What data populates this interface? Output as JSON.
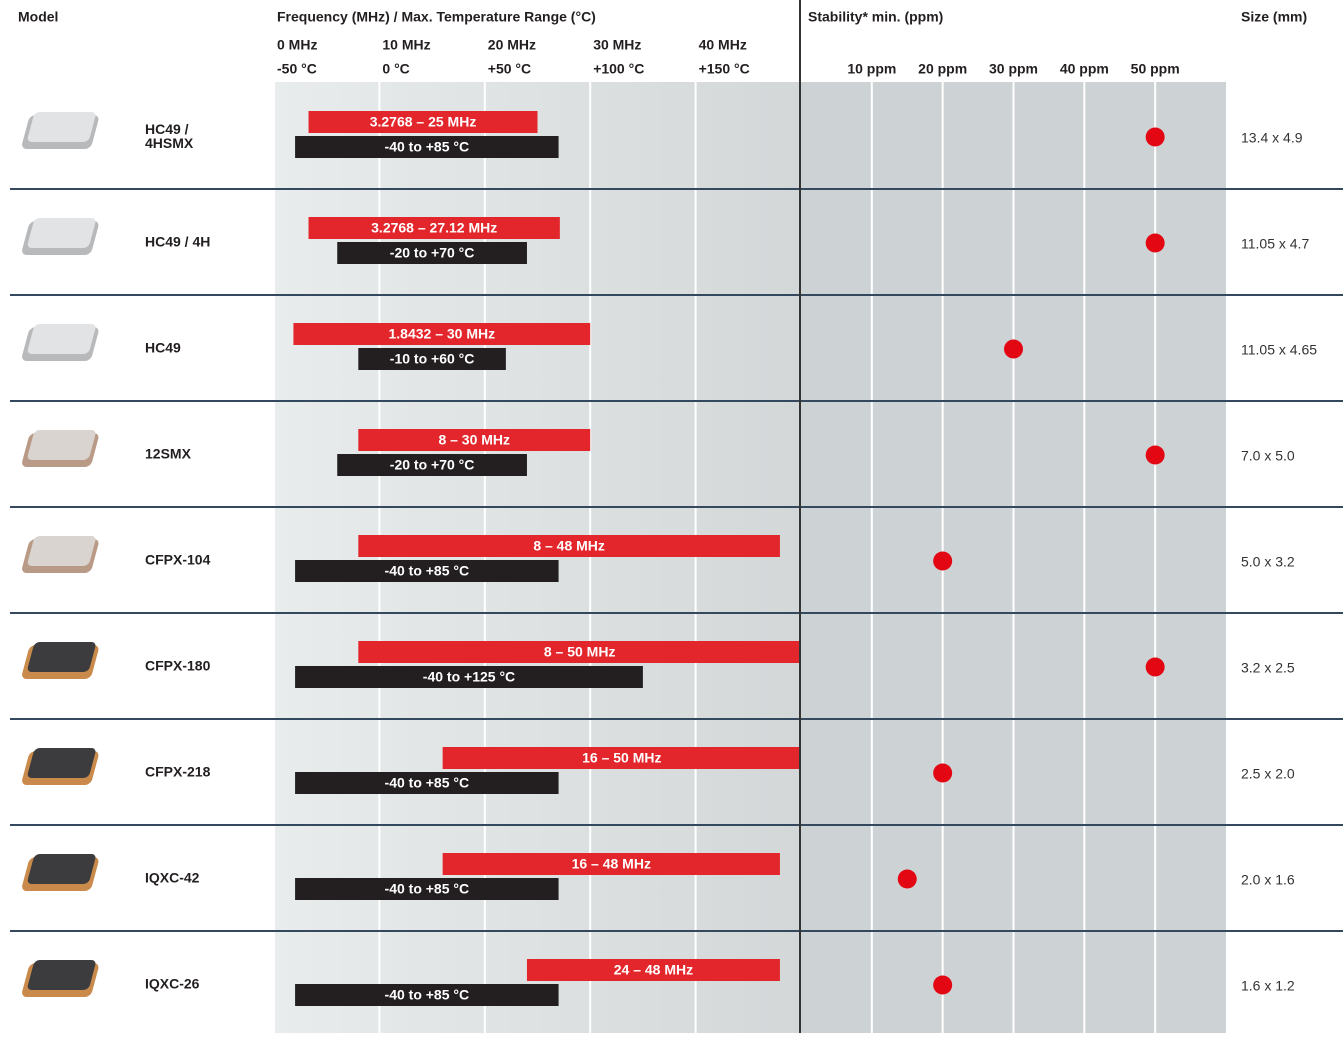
{
  "chart_data": {
    "type": "range",
    "headers": {
      "model": "Model",
      "frequency": "Frequency (MHz) / Max. Temperature Range (°C)",
      "stability": "Stability* min. (ppm)",
      "size": "Size (mm)"
    },
    "categories": [
      "HC49 /\n4HSMX",
      "HC49 / 4H",
      "HC49",
      "12SMX",
      "CFPX-104",
      "CFPX-180",
      "CFPX-218",
      "IQXC-42",
      "IQXC-26"
    ],
    "frequency": {
      "xlim": [
        0,
        50
      ],
      "xticks": [
        {
          "value": 0,
          "label": "0 MHz"
        },
        {
          "value": 10,
          "label": "10 MHz"
        },
        {
          "value": 20,
          "label": "20 MHz"
        },
        {
          "value": 30,
          "label": "30 MHz"
        },
        {
          "value": 40,
          "label": "40 MHz"
        }
      ],
      "color": "#e3262b",
      "values": [
        [
          3.2768,
          25
        ],
        [
          3.2768,
          27.12
        ],
        [
          1.8432,
          30
        ],
        [
          8,
          30
        ],
        [
          8,
          48
        ],
        [
          8,
          50
        ],
        [
          16,
          50
        ],
        [
          16,
          48
        ],
        [
          24,
          48
        ]
      ],
      "value_labels": [
        "3.2768 – 25 MHz",
        "3.2768 – 27.12 MHz",
        "1.8432 – 30 MHz",
        "8 – 30 MHz",
        "8 – 48 MHz",
        "8 – 50 MHz",
        "16 – 50 MHz",
        "16 – 48 MHz",
        "24 – 48 MHz"
      ]
    },
    "temperature": {
      "xlim": [
        -50,
        200
      ],
      "xticks": [
        {
          "value": -50,
          "label": "-50 °C"
        },
        {
          "value": 0,
          "label": "0 °C"
        },
        {
          "value": 50,
          "label": "+50 °C"
        },
        {
          "value": 100,
          "label": "+100 °C"
        },
        {
          "value": 150,
          "label": "+150 °C"
        }
      ],
      "color": "#231f20",
      "values": [
        [
          -40,
          85
        ],
        [
          -20,
          70
        ],
        [
          -10,
          60
        ],
        [
          -20,
          70
        ],
        [
          -40,
          85
        ],
        [
          -40,
          125
        ],
        [
          -40,
          85
        ],
        [
          -40,
          85
        ],
        [
          -40,
          85
        ]
      ],
      "value_labels": [
        "-40 to +85 °C",
        "-20 to +70 °C",
        "-10 to +60 °C",
        "-20 to +70 °C",
        "-40 to +85 °C",
        "-40 to +125 °C",
        "-40 to +85 °C",
        "-40 to +85 °C",
        "-40 to +85 °C"
      ]
    },
    "stability": {
      "xlim": [
        0,
        60
      ],
      "xticks": [
        {
          "value": 10,
          "label": "10 ppm"
        },
        {
          "value": 20,
          "label": "20 ppm"
        },
        {
          "value": 30,
          "label": "30 ppm"
        },
        {
          "value": 40,
          "label": "40 ppm"
        },
        {
          "value": 50,
          "label": "50 ppm"
        }
      ],
      "color": "#e30613",
      "values": [
        50,
        50,
        30,
        50,
        20,
        50,
        20,
        15,
        20
      ]
    },
    "sizes": [
      "13.4 x 4.9",
      "11.05 x 4.7",
      "11.05 x 4.65",
      "7.0 x 5.0",
      "5.0 x 3.2",
      "3.2 x 2.5",
      "2.5 x 2.0",
      "2.0 x 1.6",
      "1.6 x 1.2"
    ],
    "grid": true
  }
}
